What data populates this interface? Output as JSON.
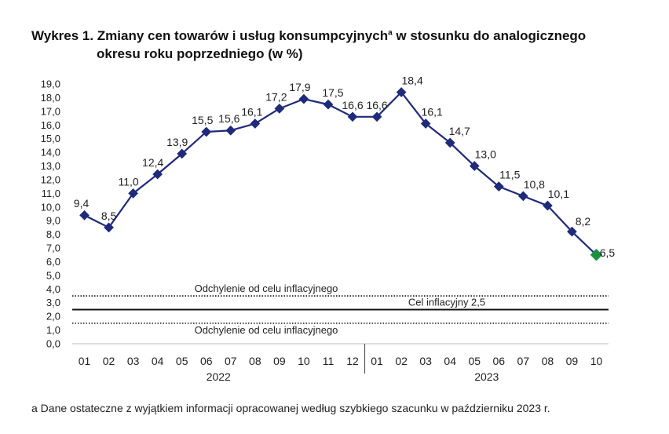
{
  "title": {
    "line1_pre": "Wykres 1. Zmiany cen towarów i usług konsumpcyjnych",
    "line1_sup": "a",
    "line1_post": " w stosunku do analogicznego",
    "line2": "okresu roku poprzedniego (w %)"
  },
  "footnote": "a Dane ostateczne z wyjątkiem informacji opracowanej według szybkiego szacunku w październiku 2023 r.",
  "chart_data": {
    "type": "line",
    "categories": [
      "01",
      "02",
      "03",
      "04",
      "05",
      "06",
      "07",
      "08",
      "09",
      "10",
      "11",
      "12",
      "01",
      "02",
      "03",
      "04",
      "05",
      "06",
      "07",
      "08",
      "09",
      "10"
    ],
    "year_groups": [
      {
        "label": "2022",
        "start": 0,
        "end": 11
      },
      {
        "label": "2023",
        "start": 12,
        "end": 21
      }
    ],
    "series": [
      {
        "values": [
          9.4,
          8.5,
          11.0,
          12.4,
          13.9,
          15.5,
          15.6,
          16.1,
          17.2,
          17.9,
          17.5,
          16.6,
          16.6,
          18.4,
          16.1,
          14.7,
          13.0,
          11.5,
          10.8,
          10.1,
          8.2,
          6.5
        ],
        "labels": [
          "9,4",
          "8,5",
          "11,0",
          "12,4",
          "13,9",
          "15,5",
          "15,6",
          "16,1",
          "17,2",
          "17,9",
          "17,5",
          "16,6",
          "16,6",
          "18,4",
          "16,1",
          "14,7",
          "13,0",
          "11,5",
          "10,8",
          "10,1",
          "8,2",
          "6,5"
        ],
        "color": "#1f2a7a",
        "last_point_color": "#1a9141"
      }
    ],
    "ylim": [
      0,
      19
    ],
    "ytick_step": 1,
    "ytick_labels": [
      "0,0",
      "1,0",
      "2,0",
      "3,0",
      "4,0",
      "5,0",
      "6,0",
      "7,0",
      "8,0",
      "9,0",
      "10,0",
      "11,0",
      "12,0",
      "13,0",
      "14,0",
      "15,0",
      "16,0",
      "17,0",
      "18,0",
      "19,0"
    ],
    "reference_lines": [
      {
        "value": 3.5,
        "style": "dotted",
        "label": "Odchylenie od celu inflacyjnego"
      },
      {
        "value": 2.5,
        "style": "solid",
        "label": "Cel inflacyjny 2,5"
      },
      {
        "value": 1.5,
        "style": "dotted",
        "label": "Odchylenie od celu inflacyjnego"
      }
    ],
    "grid": false
  }
}
